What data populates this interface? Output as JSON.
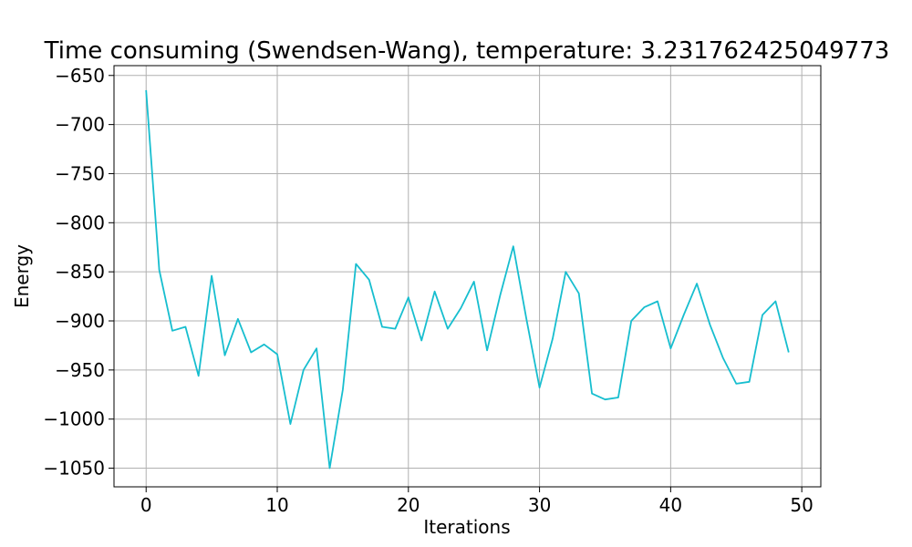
{
  "chart_data": {
    "type": "line",
    "title": "Time consuming (Swendsen-Wang), temperature: 3.231762425049773",
    "xlabel": "Iterations",
    "ylabel": "Energy",
    "xlim": [
      -2.45,
      51.45
    ],
    "ylim": [
      -1069,
      -640
    ],
    "grid": true,
    "x_ticks": [
      0,
      10,
      20,
      30,
      40,
      50
    ],
    "y_ticks": [
      -650,
      -700,
      -750,
      -800,
      -850,
      -900,
      -950,
      -1000,
      -1050
    ],
    "x_tick_labels": [
      "0",
      "10",
      "20",
      "30",
      "40",
      "50"
    ],
    "y_tick_labels": [
      "−650",
      "−700",
      "−750",
      "−800",
      "−850",
      "−900",
      "−950",
      "−1000",
      "−1050"
    ],
    "line_color": "#17becf",
    "series": [
      {
        "x": [
          0,
          1,
          2,
          3,
          4,
          5,
          6,
          7,
          8,
          9,
          10,
          11,
          12,
          13,
          14,
          15,
          16,
          17,
          18,
          19,
          20,
          21,
          22,
          23,
          24,
          25,
          26,
          27,
          28,
          29,
          30,
          31,
          32,
          33,
          34,
          35,
          36,
          37,
          38,
          39,
          40,
          41,
          42,
          43,
          44,
          45,
          46,
          47,
          48,
          49
        ],
        "values": [
          -665,
          -848,
          -910,
          -906,
          -956,
          -854,
          -935,
          -898,
          -932,
          -924,
          -934,
          -1005,
          -950,
          -928,
          -1050,
          -970,
          -842,
          -858,
          -906,
          -908,
          -876,
          -920,
          -870,
          -908,
          -887,
          -860,
          -930,
          -874,
          -824,
          -898,
          -968,
          -918,
          -850,
          -872,
          -974,
          -980,
          -978,
          -900,
          -886,
          -880,
          -928,
          -894,
          -862,
          -904,
          -938,
          -964,
          -962,
          -894,
          -880,
          -932
        ]
      }
    ]
  }
}
